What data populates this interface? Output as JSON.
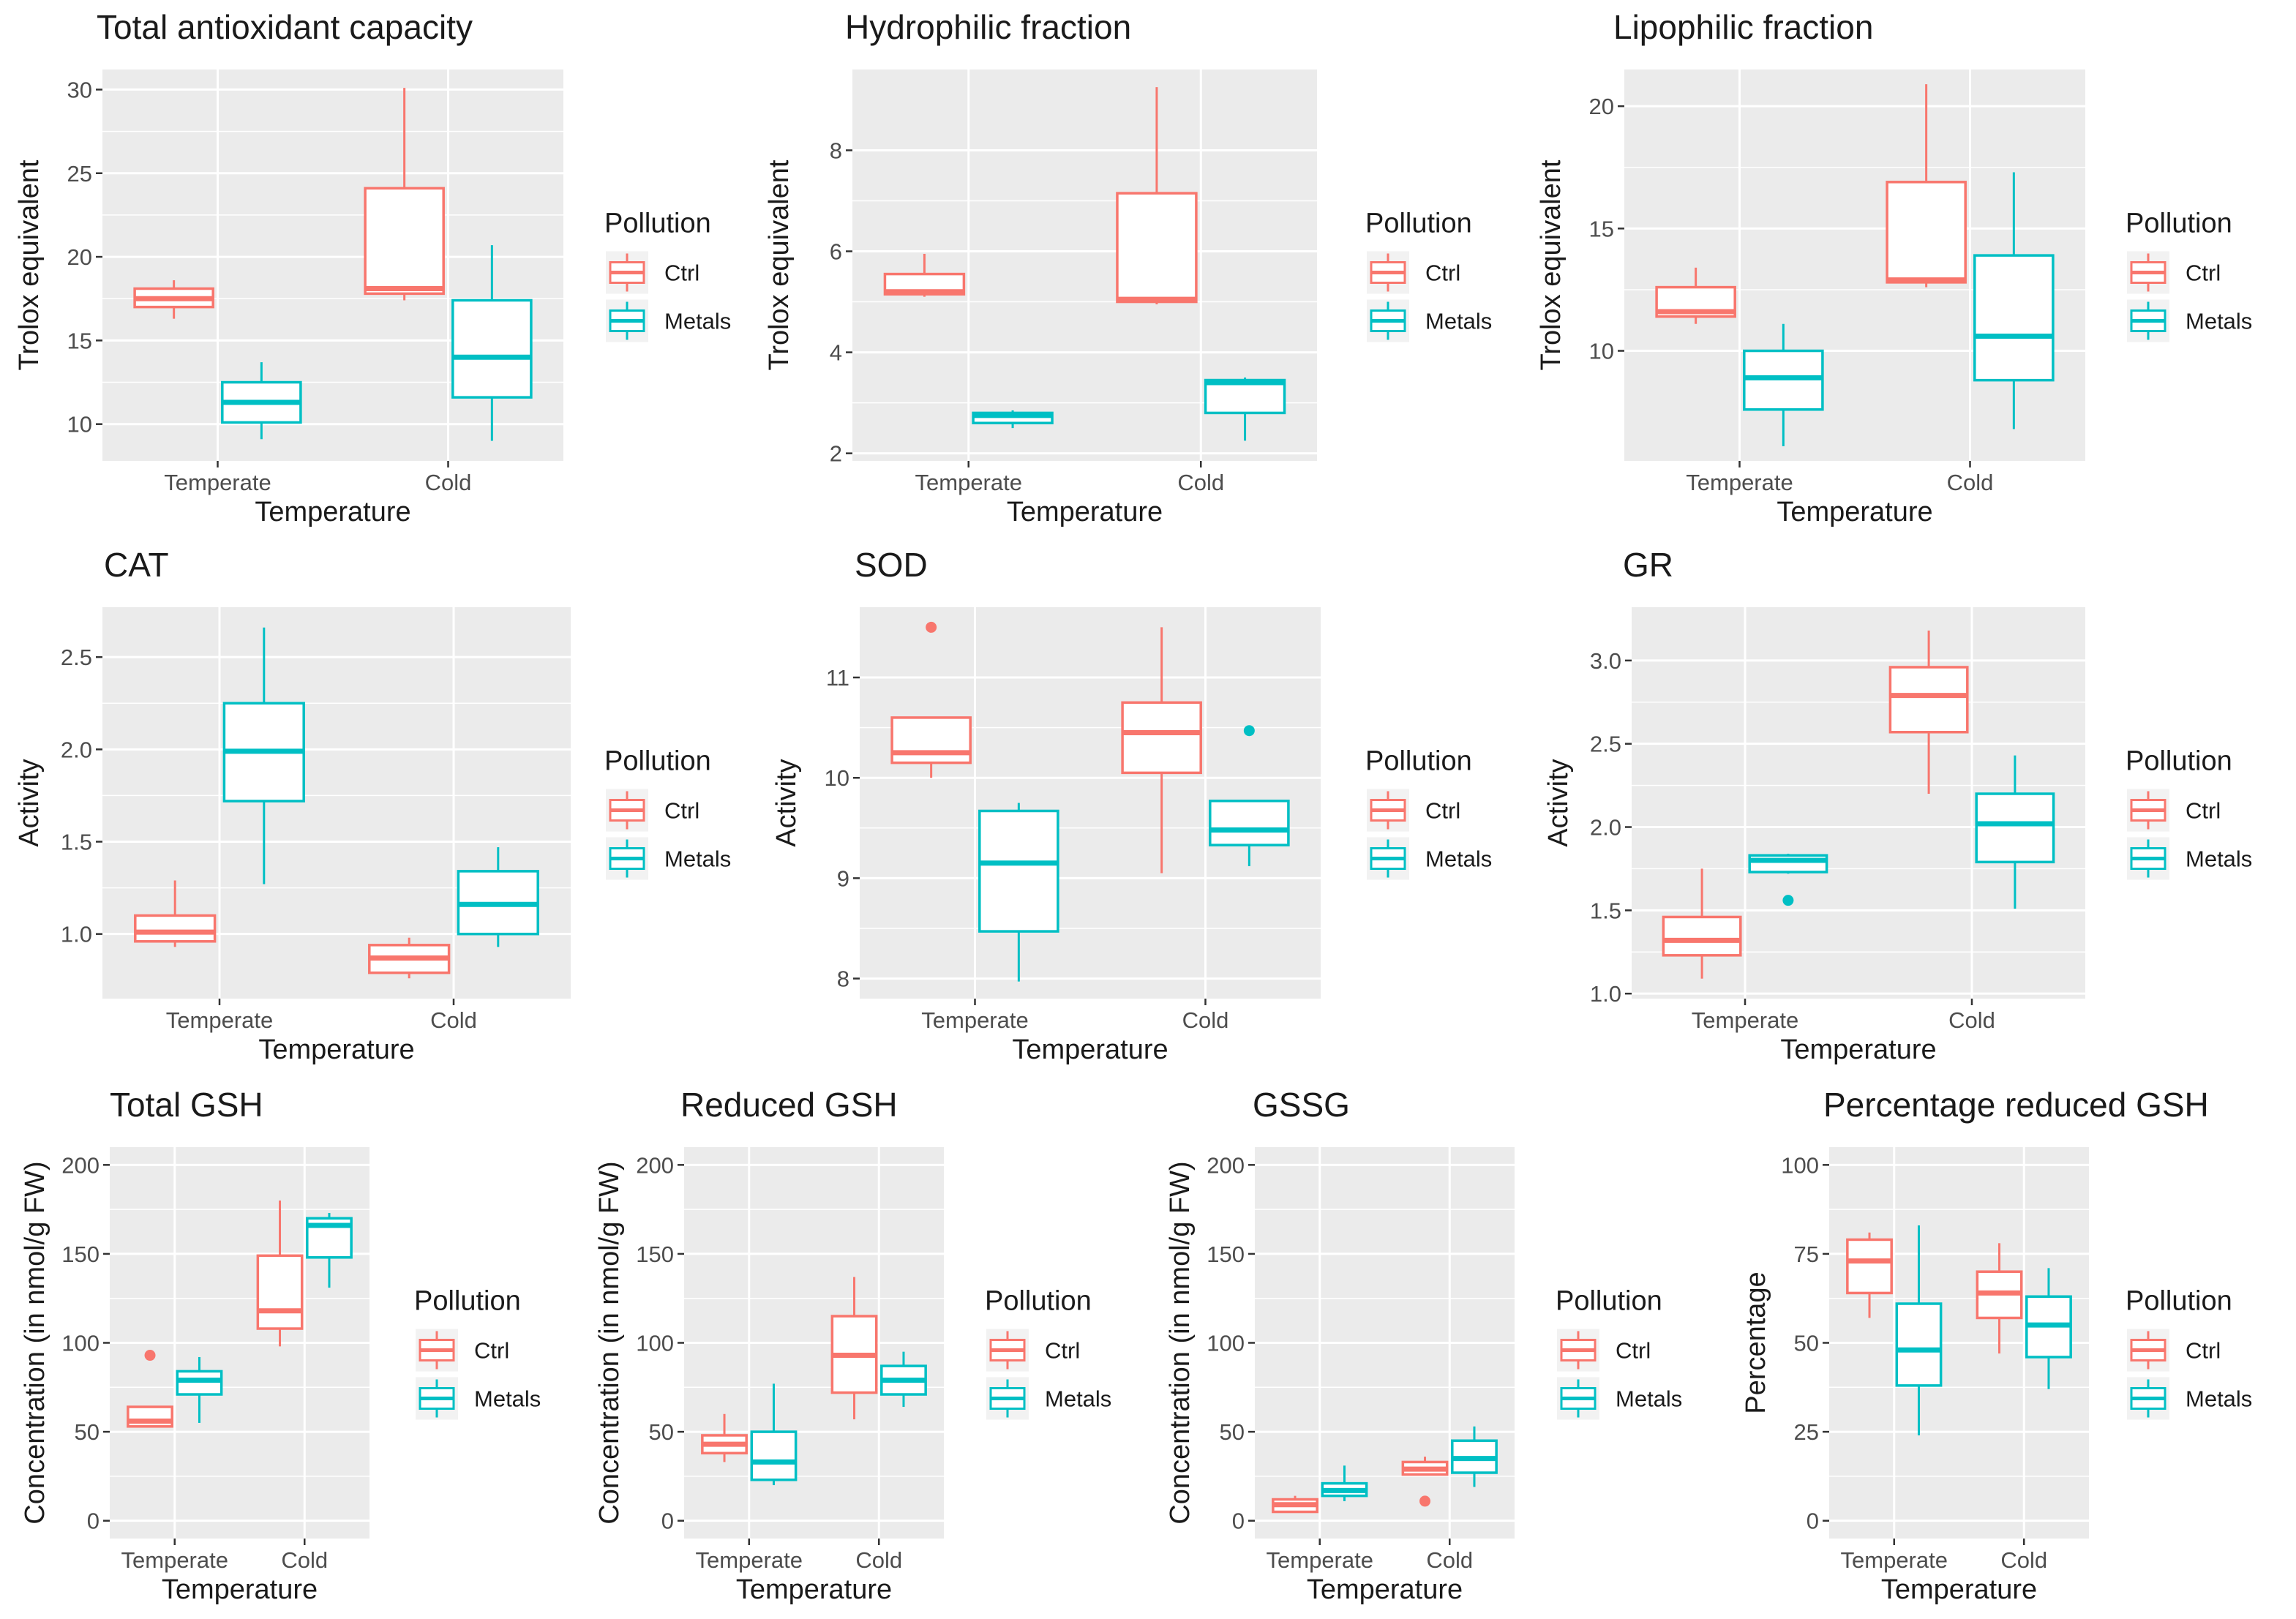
{
  "colors": {
    "ctrl": "#F8766D",
    "metals": "#00BFC4",
    "panel": "#EBEBEB",
    "grid": "#FFFFFF"
  },
  "legend": {
    "title": "Pollution",
    "entries": [
      "Ctrl",
      "Metals"
    ]
  },
  "chart_data": [
    {
      "type": "boxplot",
      "title": "Total antioxidant capacity",
      "xlabel": "Temperature",
      "ylabel": "Trolox equivalent",
      "categories": [
        "Temperate",
        "Cold"
      ],
      "ylim": [
        7.8,
        31.2
      ],
      "yticks": [
        10,
        15,
        20,
        25,
        30
      ],
      "series": [
        {
          "name": "Ctrl",
          "boxes": [
            {
              "min": 16.3,
              "q1": 17.0,
              "median": 17.5,
              "q3": 18.1,
              "max": 18.6,
              "outliers": []
            },
            {
              "min": 17.4,
              "q1": 17.8,
              "median": 18.1,
              "q3": 24.1,
              "max": 30.1,
              "outliers": []
            }
          ]
        },
        {
          "name": "Metals",
          "boxes": [
            {
              "min": 9.1,
              "q1": 10.1,
              "median": 11.3,
              "q3": 12.5,
              "max": 13.7,
              "outliers": []
            },
            {
              "min": 9.0,
              "q1": 11.6,
              "median": 14.0,
              "q3": 17.4,
              "max": 20.7,
              "outliers": []
            }
          ]
        }
      ]
    },
    {
      "type": "boxplot",
      "title": "Hydrophilic fraction",
      "xlabel": "Temperature",
      "ylabel": "Trolox equivalent",
      "categories": [
        "Temperate",
        "Cold"
      ],
      "ylim": [
        1.85,
        9.6
      ],
      "yticks": [
        2,
        4,
        6,
        8
      ],
      "series": [
        {
          "name": "Ctrl",
          "boxes": [
            {
              "min": 5.1,
              "q1": 5.15,
              "median": 5.2,
              "q3": 5.55,
              "max": 5.95,
              "outliers": []
            },
            {
              "min": 4.95,
              "q1": 5.0,
              "median": 5.05,
              "q3": 7.15,
              "max": 9.25,
              "outliers": []
            }
          ]
        },
        {
          "name": "Metals",
          "boxes": [
            {
              "min": 2.5,
              "q1": 2.6,
              "median": 2.75,
              "q3": 2.8,
              "max": 2.85,
              "outliers": []
            },
            {
              "min": 2.25,
              "q1": 2.8,
              "median": 3.4,
              "q3": 3.45,
              "max": 3.5,
              "outliers": []
            }
          ]
        }
      ]
    },
    {
      "type": "boxplot",
      "title": "Lipophilic fraction",
      "xlabel": "Temperature",
      "ylabel": "Trolox equivalent",
      "categories": [
        "Temperate",
        "Cold"
      ],
      "ylim": [
        5.5,
        21.5
      ],
      "yticks": [
        10,
        15,
        20
      ],
      "series": [
        {
          "name": "Ctrl",
          "boxes": [
            {
              "min": 11.1,
              "q1": 11.4,
              "median": 11.6,
              "q3": 12.6,
              "max": 13.4,
              "outliers": []
            },
            {
              "min": 12.6,
              "q1": 12.8,
              "median": 12.9,
              "q3": 16.9,
              "max": 20.9,
              "outliers": []
            }
          ]
        },
        {
          "name": "Metals",
          "boxes": [
            {
              "min": 6.1,
              "q1": 7.6,
              "median": 8.9,
              "q3": 10.0,
              "max": 11.1,
              "outliers": []
            },
            {
              "min": 6.8,
              "q1": 8.8,
              "median": 10.6,
              "q3": 13.9,
              "max": 17.3,
              "outliers": []
            }
          ]
        }
      ]
    },
    {
      "type": "boxplot",
      "title": "CAT",
      "xlabel": "Temperature",
      "ylabel": "Activity",
      "categories": [
        "Temperate",
        "Cold"
      ],
      "ylim": [
        0.65,
        2.77
      ],
      "yticks": [
        1.0,
        1.5,
        2.0,
        2.5
      ],
      "tickDecimals": 1,
      "series": [
        {
          "name": "Ctrl",
          "boxes": [
            {
              "min": 0.93,
              "q1": 0.96,
              "median": 1.01,
              "q3": 1.1,
              "max": 1.29,
              "outliers": []
            },
            {
              "min": 0.76,
              "q1": 0.79,
              "median": 0.87,
              "q3": 0.94,
              "max": 0.98,
              "outliers": []
            }
          ]
        },
        {
          "name": "Metals",
          "boxes": [
            {
              "min": 1.27,
              "q1": 1.72,
              "median": 1.99,
              "q3": 2.25,
              "max": 2.66,
              "outliers": []
            },
            {
              "min": 0.93,
              "q1": 1.0,
              "median": 1.16,
              "q3": 1.34,
              "max": 1.47,
              "outliers": []
            }
          ]
        }
      ]
    },
    {
      "type": "boxplot",
      "title": "SOD",
      "xlabel": "Temperature",
      "ylabel": "Activity",
      "categories": [
        "Temperate",
        "Cold"
      ],
      "ylim": [
        7.8,
        11.7
      ],
      "yticks": [
        8,
        9,
        10,
        11
      ],
      "series": [
        {
          "name": "Ctrl",
          "boxes": [
            {
              "min": 10.0,
              "q1": 10.15,
              "median": 10.25,
              "q3": 10.6,
              "max": 10.6,
              "outliers": [
                11.5
              ]
            },
            {
              "min": 9.05,
              "q1": 10.05,
              "median": 10.45,
              "q3": 10.75,
              "max": 11.5,
              "outliers": []
            }
          ]
        },
        {
          "name": "Metals",
          "boxes": [
            {
              "min": 7.97,
              "q1": 8.47,
              "median": 9.15,
              "q3": 9.67,
              "max": 9.75,
              "outliers": []
            },
            {
              "min": 9.12,
              "q1": 9.33,
              "median": 9.48,
              "q3": 9.77,
              "max": 9.77,
              "outliers": [
                10.47
              ]
            }
          ]
        }
      ]
    },
    {
      "type": "boxplot",
      "title": "GR",
      "xlabel": "Temperature",
      "ylabel": "Activity",
      "categories": [
        "Temperate",
        "Cold"
      ],
      "ylim": [
        0.97,
        3.32
      ],
      "yticks": [
        1.0,
        1.5,
        2.0,
        2.5,
        3.0
      ],
      "tickDecimals": 1,
      "series": [
        {
          "name": "Ctrl",
          "boxes": [
            {
              "min": 1.09,
              "q1": 1.23,
              "median": 1.32,
              "q3": 1.46,
              "max": 1.75,
              "outliers": []
            },
            {
              "min": 2.2,
              "q1": 2.57,
              "median": 2.79,
              "q3": 2.96,
              "max": 3.18,
              "outliers": []
            }
          ]
        },
        {
          "name": "Metals",
          "boxes": [
            {
              "min": 1.72,
              "q1": 1.73,
              "median": 1.8,
              "q3": 1.83,
              "max": 1.84,
              "outliers": [
                1.56
              ]
            },
            {
              "min": 1.51,
              "q1": 1.79,
              "median": 2.02,
              "q3": 2.2,
              "max": 2.43,
              "outliers": []
            }
          ]
        }
      ]
    },
    {
      "type": "boxplot",
      "title": "Total GSH",
      "xlabel": "Temperature",
      "ylabel": "Concentration (in nmol/g FW)",
      "categories": [
        "Temperate",
        "Cold"
      ],
      "ylim": [
        -10,
        210
      ],
      "yticks": [
        0,
        50,
        100,
        150,
        200
      ],
      "series": [
        {
          "name": "Ctrl",
          "boxes": [
            {
              "min": 53,
              "q1": 53,
              "median": 56,
              "q3": 64,
              "max": 64,
              "outliers": [
                93
              ]
            },
            {
              "min": 98,
              "q1": 108,
              "median": 118,
              "q3": 149,
              "max": 180,
              "outliers": []
            }
          ]
        },
        {
          "name": "Metals",
          "boxes": [
            {
              "min": 55,
              "q1": 71,
              "median": 79,
              "q3": 84,
              "max": 92,
              "outliers": []
            },
            {
              "min": 131,
              "q1": 148,
              "median": 166,
              "q3": 170,
              "max": 173,
              "outliers": []
            }
          ]
        }
      ]
    },
    {
      "type": "boxplot",
      "title": "Reduced GSH",
      "xlabel": "Temperature",
      "ylabel": "Concentration (in nmol/g FW)",
      "categories": [
        "Temperate",
        "Cold"
      ],
      "ylim": [
        -10,
        210
      ],
      "yticks": [
        0,
        50,
        100,
        150,
        200
      ],
      "series": [
        {
          "name": "Ctrl",
          "boxes": [
            {
              "min": 33,
              "q1": 38,
              "median": 43,
              "q3": 48,
              "max": 60,
              "outliers": []
            },
            {
              "min": 57,
              "q1": 72,
              "median": 93,
              "q3": 115,
              "max": 137,
              "outliers": []
            }
          ]
        },
        {
          "name": "Metals",
          "boxes": [
            {
              "min": 20,
              "q1": 23,
              "median": 33,
              "q3": 50,
              "max": 77,
              "outliers": []
            },
            {
              "min": 64,
              "q1": 71,
              "median": 79,
              "q3": 87,
              "max": 95,
              "outliers": []
            }
          ]
        }
      ]
    },
    {
      "type": "boxplot",
      "title": "GSSG",
      "xlabel": "Temperature",
      "ylabel": "Concentration (in nmol/g FW)",
      "categories": [
        "Temperate",
        "Cold"
      ],
      "ylim": [
        -10,
        210
      ],
      "yticks": [
        0,
        50,
        100,
        150,
        200
      ],
      "series": [
        {
          "name": "Ctrl",
          "boxes": [
            {
              "min": 5,
              "q1": 5,
              "median": 9,
              "q3": 12,
              "max": 14,
              "outliers": []
            },
            {
              "min": 26,
              "q1": 26,
              "median": 29,
              "q3": 33,
              "max": 36,
              "outliers": [
                11
              ]
            }
          ]
        },
        {
          "name": "Metals",
          "boxes": [
            {
              "min": 11,
              "q1": 14,
              "median": 17,
              "q3": 21,
              "max": 31,
              "outliers": []
            },
            {
              "min": 19,
              "q1": 27,
              "median": 35,
              "q3": 45,
              "max": 53,
              "outliers": []
            }
          ]
        }
      ]
    },
    {
      "type": "boxplot",
      "title": "Percentage reduced GSH",
      "xlabel": "Temperature",
      "ylabel": "Percentage",
      "categories": [
        "Temperate",
        "Cold"
      ],
      "ylim": [
        -5,
        105
      ],
      "yticks": [
        0,
        25,
        50,
        75,
        100
      ],
      "series": [
        {
          "name": "Ctrl",
          "boxes": [
            {
              "min": 57,
              "q1": 64,
              "median": 73,
              "q3": 79,
              "max": 81,
              "outliers": []
            },
            {
              "min": 47,
              "q1": 57,
              "median": 64,
              "q3": 70,
              "max": 78,
              "outliers": []
            }
          ]
        },
        {
          "name": "Metals",
          "boxes": [
            {
              "min": 24,
              "q1": 38,
              "median": 48,
              "q3": 61,
              "max": 83,
              "outliers": []
            },
            {
              "min": 37,
              "q1": 46,
              "median": 55,
              "q3": 63,
              "max": 71,
              "outliers": []
            }
          ]
        }
      ]
    }
  ]
}
